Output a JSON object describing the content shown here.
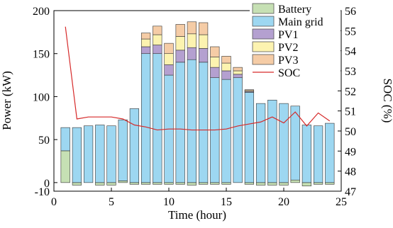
{
  "chart_data": {
    "type": "bar",
    "x": [
      1,
      2,
      3,
      4,
      5,
      6,
      7,
      8,
      9,
      10,
      11,
      12,
      13,
      14,
      15,
      16,
      17,
      18,
      19,
      20,
      21,
      22,
      23,
      24
    ],
    "stack_order": [
      "Battery",
      "Main grid",
      "PV1",
      "PV2",
      "PV3"
    ],
    "series": [
      {
        "name": "Battery",
        "type": "bar",
        "axis": "left",
        "color": "#c6e0b4",
        "values": [
          37,
          -3,
          0,
          -3,
          -3,
          2,
          -2,
          -2,
          -2,
          -2,
          -2,
          -3,
          -2,
          -2,
          -2,
          0,
          -2,
          -3,
          -3,
          -3,
          3,
          -4,
          -2,
          -2
        ]
      },
      {
        "name": "Main grid",
        "type": "bar",
        "axis": "left",
        "color": "#9dd7f1",
        "values": [
          27,
          64,
          66,
          67,
          66,
          71,
          86,
          150,
          150,
          125,
          140,
          143,
          140,
          122,
          120,
          122,
          105,
          92,
          96,
          92,
          86,
          67,
          66,
          69
        ]
      },
      {
        "name": "PV1",
        "type": "bar",
        "axis": "left",
        "color": "#b4a0d0",
        "values": [
          0,
          0,
          0,
          0,
          0,
          0,
          0,
          8,
          10,
          12,
          14,
          14,
          16,
          12,
          10,
          4,
          1,
          0,
          0,
          0,
          0,
          0,
          0,
          0
        ]
      },
      {
        "name": "PV2",
        "type": "bar",
        "axis": "left",
        "color": "#fcf3b0",
        "values": [
          0,
          0,
          0,
          0,
          0,
          0,
          0,
          9,
          12,
          13,
          16,
          16,
          16,
          12,
          9,
          4,
          1,
          0,
          0,
          0,
          0,
          0,
          0,
          0
        ]
      },
      {
        "name": "PV3",
        "type": "bar",
        "axis": "left",
        "color": "#f5cca6",
        "values": [
          0,
          0,
          0,
          0,
          0,
          0,
          0,
          7,
          10,
          12,
          14,
          14,
          14,
          12,
          8,
          4,
          1,
          0,
          0,
          0,
          0,
          0,
          0,
          0
        ]
      },
      {
        "name": "SOC",
        "type": "line",
        "axis": "right",
        "color": "#d62a2a",
        "x": [
          1,
          2,
          3,
          4,
          5,
          6,
          7,
          8,
          9,
          10,
          11,
          12,
          13,
          14,
          15,
          16,
          17,
          18,
          19,
          20,
          21,
          22,
          23,
          24
        ],
        "values": [
          55.2,
          50.6,
          50.7,
          50.7,
          50.7,
          50.6,
          50.3,
          50.2,
          50.05,
          50.1,
          50.1,
          50.05,
          50.05,
          50.05,
          50.1,
          50.25,
          50.35,
          50.45,
          50.7,
          50.4,
          50.95,
          50.25,
          50.9,
          50.5
        ]
      }
    ],
    "xlabel": "Time (hour)",
    "ylabel": "Power (kW)",
    "ylabel_right": "SOC (%)",
    "xlim": [
      0,
      25
    ],
    "ylim": [
      -10,
      200
    ],
    "ylim_right": [
      47,
      56
    ],
    "xticks": [
      0,
      5,
      10,
      15,
      20,
      25
    ],
    "yticks": [
      -10,
      0,
      50,
      100,
      150,
      200
    ],
    "yticks_right": [
      47,
      48,
      49,
      50,
      51,
      52,
      53,
      54,
      55,
      56
    ],
    "legend": {
      "placement": "top-right",
      "entries": [
        "Battery",
        "Main grid",
        "PV1",
        "PV2",
        "PV3",
        "SOC"
      ]
    },
    "grid": false,
    "stroke_color": "#555555",
    "bar_outline_color": "#333333"
  }
}
